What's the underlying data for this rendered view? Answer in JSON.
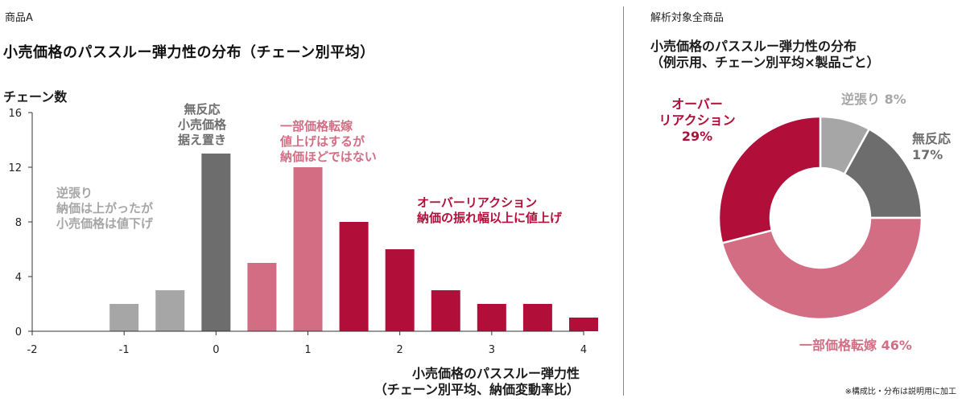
{
  "left": {
    "product_label": "商品A",
    "title": "小売価格のパススルー弾力性の分布（チェーン別平均）",
    "ylabel": "チェーン数",
    "xlabel_line1": "小売価格のパススルー弾力性",
    "xlabel_line2": "（チェーン別平均、納価変動率比）",
    "annotations": {
      "contrarian": "逆張り\n納価は上がったが\n小売価格は値下げ",
      "no_response": "無反応\n小売価格\n据え置き",
      "partial": "一部価格転嫁\n値上げはするが\n納価ほどではない",
      "overreaction": "オーバーリアクション\n納価の振れ幅以上に値上げ"
    }
  },
  "right": {
    "scope_label": "解析対象全商品",
    "title_line1": "小売価格のパススルー弾力性の分布",
    "title_line2": "（例示用、チェーン別平均×製品ごと）",
    "labels": {
      "contrarian": "逆張り 8%",
      "no_response_1": "無反応",
      "no_response_2": "17%",
      "overreaction_1": "オーバー",
      "overreaction_2": "リアクション",
      "overreaction_3": "29%",
      "partial": "一部価格転嫁 46%"
    },
    "note": "※構成比・分布は説明用に加工"
  },
  "colors": {
    "contrarian": "#a6a6a6",
    "no_response": "#6d6d6d",
    "partial": "#d26d84",
    "overreaction": "#b20e3a"
  },
  "chart_data": [
    {
      "type": "bar",
      "title": "小売価格のパススルー弾力性の分布（チェーン別平均）",
      "xlabel": "小売価格のパススルー弾力性（チェーン別平均、納価変動率比）",
      "ylabel": "チェーン数",
      "xlim": [
        -2,
        4
      ],
      "ylim": [
        0,
        16
      ],
      "xticks": [
        -2,
        -1,
        0,
        1,
        2,
        3,
        4
      ],
      "yticks": [
        0,
        4,
        8,
        12,
        16
      ],
      "grid": false,
      "bins": [
        {
          "x": -1.0,
          "value": 2,
          "group": "contrarian"
        },
        {
          "x": -0.5,
          "value": 3,
          "group": "contrarian"
        },
        {
          "x": 0.0,
          "value": 13,
          "group": "no_response"
        },
        {
          "x": 0.5,
          "value": 5,
          "group": "partial"
        },
        {
          "x": 1.0,
          "value": 12,
          "group": "partial"
        },
        {
          "x": 1.5,
          "value": 8,
          "group": "overreaction"
        },
        {
          "x": 2.0,
          "value": 6,
          "group": "overreaction"
        },
        {
          "x": 2.5,
          "value": 3,
          "group": "overreaction"
        },
        {
          "x": 3.0,
          "value": 2,
          "group": "overreaction"
        },
        {
          "x": 3.5,
          "value": 2,
          "group": "overreaction"
        },
        {
          "x": 4.0,
          "value": 1,
          "group": "overreaction"
        }
      ]
    },
    {
      "type": "pie",
      "title": "小売価格のパススルー弾力性の分布（例示用、チェーン別平均×製品ごと）",
      "slices": [
        {
          "label": "逆張り",
          "value": 8,
          "group": "contrarian"
        },
        {
          "label": "無反応",
          "value": 17,
          "group": "no_response"
        },
        {
          "label": "一部価格転嫁",
          "value": 46,
          "group": "partial"
        },
        {
          "label": "オーバーリアクション",
          "value": 29,
          "group": "overreaction"
        }
      ]
    }
  ]
}
